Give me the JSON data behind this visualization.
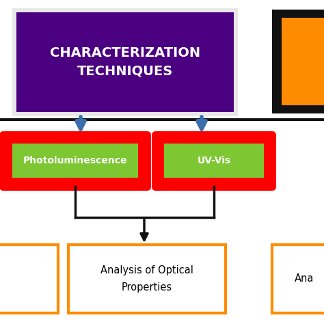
{
  "title_text": "CHARACTERIZATION\nTECHNIQUES",
  "title_bg": "#4a0080",
  "title_border": "#e8e8e8",
  "title_text_color": "#ffffff",
  "node1_text": "Photoluminescence",
  "node2_text": "UV-Vis",
  "node_inner_bg": "#7dc832",
  "node_outer_bg": "#ff0000",
  "node_text_color": "#ffffff",
  "bottom_box_text": "Analysis of Optical\nProperties",
  "bottom_box_border": "#ff8c00",
  "bottom_box_bg": "#ffffff",
  "bottom_box_text_color": "#000000",
  "right_black_border": "#111111",
  "right_orange_fill": "#ff8c00",
  "arrow_color": "#3a6fad",
  "connector_color": "#111111",
  "bg_color": "#ffffff",
  "bottom_left_orange_border": "#ff8c00",
  "bottom_right_partial_border": "#ff8c00",
  "hline_color": "#111111"
}
